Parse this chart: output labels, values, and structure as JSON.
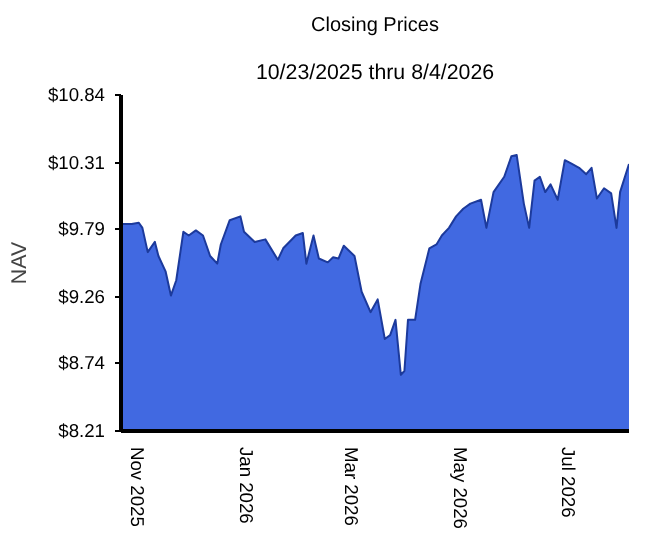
{
  "chart_data": {
    "type": "area",
    "title": "Closing Prices",
    "subtitle": "10/23/2025 thru 8/4/2026",
    "ylabel": "NAV",
    "x": [
      "2025-10-23",
      "2025-10-29",
      "2025-11-02",
      "2025-11-04",
      "2025-11-07",
      "2025-11-11",
      "2025-11-13",
      "2025-11-17",
      "2025-11-20",
      "2025-11-23",
      "2025-11-27",
      "2025-11-30",
      "2025-12-04",
      "2025-12-08",
      "2025-12-12",
      "2025-12-16",
      "2025-12-18",
      "2025-12-23",
      "2025-12-29",
      "2025-12-31",
      "2026-01-06",
      "2026-01-12",
      "2026-01-19",
      "2026-01-22",
      "2026-01-29",
      "2026-02-02",
      "2026-02-04",
      "2026-02-08",
      "2026-02-11",
      "2026-02-16",
      "2026-02-19",
      "2026-02-22",
      "2026-02-25",
      "2026-03-03",
      "2026-03-07",
      "2026-03-12",
      "2026-03-16",
      "2026-03-20",
      "2026-03-23",
      "2026-03-26",
      "2026-03-29",
      "2026-03-31",
      "2026-04-02",
      "2026-04-06",
      "2026-04-09",
      "2026-04-14",
      "2026-04-18",
      "2026-04-21",
      "2026-04-25",
      "2026-04-29",
      "2026-05-03",
      "2026-05-07",
      "2026-05-13",
      "2026-05-16",
      "2026-05-20",
      "2026-05-26",
      "2026-05-30",
      "2026-06-02",
      "2026-06-06",
      "2026-06-09",
      "2026-06-12",
      "2026-06-15",
      "2026-06-18",
      "2026-06-21",
      "2026-06-25",
      "2026-06-29",
      "2026-07-03",
      "2026-07-07",
      "2026-07-11",
      "2026-07-14",
      "2026-07-17",
      "2026-07-21",
      "2026-07-25",
      "2026-07-28",
      "2026-07-30",
      "2026-08-04"
    ],
    "series": [
      {
        "color": "#4169e1",
        "values": [
          9.83,
          9.83,
          9.84,
          9.8,
          9.61,
          9.69,
          9.58,
          9.46,
          9.27,
          9.39,
          9.77,
          9.74,
          9.78,
          9.74,
          9.58,
          9.52,
          9.67,
          9.86,
          9.89,
          9.77,
          9.69,
          9.71,
          9.55,
          9.64,
          9.74,
          9.76,
          9.52,
          9.74,
          9.56,
          9.53,
          9.57,
          9.56,
          9.66,
          9.58,
          9.3,
          9.14,
          9.24,
          8.93,
          8.96,
          9.08,
          8.65,
          8.68,
          9.08,
          9.08,
          9.36,
          9.64,
          9.67,
          9.74,
          9.8,
          9.89,
          9.95,
          9.99,
          10.02,
          9.8,
          10.08,
          10.2,
          10.36,
          10.37,
          9.99,
          9.8,
          10.17,
          10.2,
          10.08,
          10.14,
          10.02,
          10.33,
          10.3,
          10.27,
          10.22,
          10.27,
          10.03,
          10.11,
          10.07,
          9.8,
          10.08,
          10.3
        ]
      }
    ],
    "xlim": [
      "2025-10-23",
      "2026-08-04"
    ],
    "xticks": [
      {
        "value": "2025-11-01",
        "label": "Nov 2025"
      },
      {
        "value": "2026-01-01",
        "label": "Jan 2026"
      },
      {
        "value": "2026-03-01",
        "label": "Mar 2026"
      },
      {
        "value": "2026-05-01",
        "label": "May 2026"
      },
      {
        "value": "2026-07-01",
        "label": "Jul 2026"
      }
    ],
    "ylim": [
      8.21,
      10.84
    ],
    "yticks": [
      {
        "value": 8.21,
        "label": "$8.21"
      },
      {
        "value": 8.74,
        "label": "$8.74"
      },
      {
        "value": 9.26,
        "label": "$9.26"
      },
      {
        "value": 9.79,
        "label": "$9.79"
      },
      {
        "value": 10.31,
        "label": "$10.31"
      },
      {
        "value": 10.84,
        "label": "$10.84"
      }
    ],
    "grid": false
  }
}
